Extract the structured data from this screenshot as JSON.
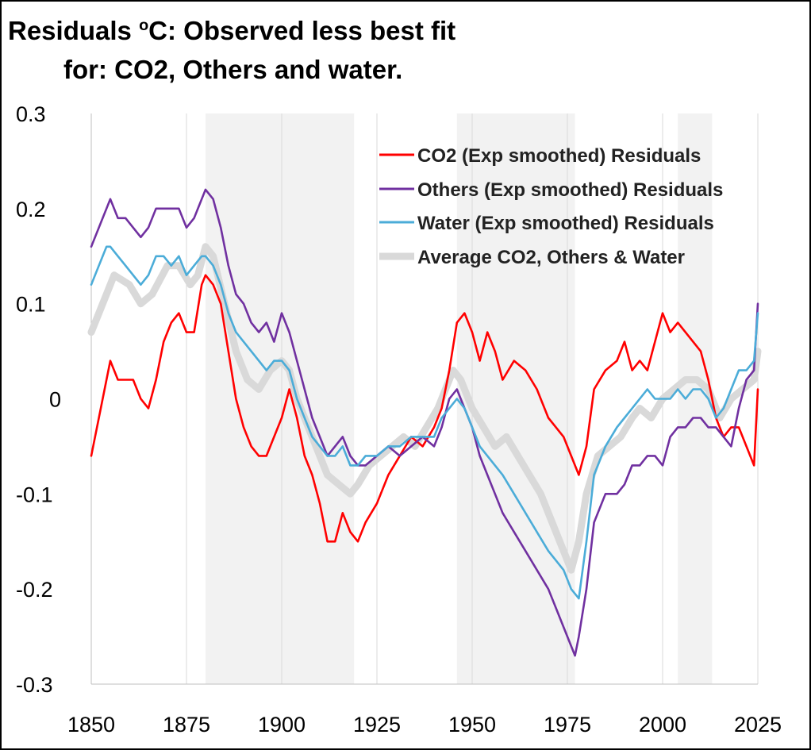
{
  "chart_data": {
    "type": "line",
    "title_line1_a": "Residuals ",
    "title_sup": "o",
    "title_line1_b": "C: Observed less best fit",
    "title_line2": "for: CO2, Others and water.",
    "xlim": [
      1850,
      2025
    ],
    "ylim": [
      -0.3,
      0.3
    ],
    "x_ticks": [
      1850,
      1875,
      1900,
      1925,
      1950,
      1975,
      2000,
      2025
    ],
    "x_tick_labels": [
      "1850",
      "1875",
      "1900",
      "1925",
      "1950",
      "1975",
      "2000",
      "2025"
    ],
    "y_ticks": [
      0.3,
      0.2,
      0.1,
      0,
      -0.1,
      -0.2,
      -0.3
    ],
    "y_tick_labels": [
      "0.3",
      "0.2",
      "0.1",
      "0",
      "-0.1",
      "-0.2",
      "-0.3"
    ],
    "grid": "vertical",
    "legend_position": "top-right",
    "shaded_periods": [
      [
        1880,
        1919
      ],
      [
        1946,
        1977
      ],
      [
        2004,
        2013
      ]
    ],
    "series": [
      {
        "name": "Average CO2, Others & Water",
        "color": "#d9d9d9",
        "x": [
          1850,
          1853,
          1856,
          1860,
          1863,
          1866,
          1870,
          1873,
          1876,
          1878,
          1880,
          1882,
          1885,
          1888,
          1891,
          1894,
          1897,
          1900,
          1902,
          1904,
          1906,
          1909,
          1912,
          1915,
          1918,
          1920,
          1923,
          1926,
          1929,
          1932,
          1935,
          1938,
          1941,
          1943,
          1945,
          1947,
          1950,
          1953,
          1956,
          1959,
          1962,
          1965,
          1968,
          1971,
          1974,
          1976,
          1978,
          1980,
          1983,
          1986,
          1989,
          1992,
          1994,
          1997,
          2000,
          2003,
          2006,
          2009,
          2012,
          2015,
          2018,
          2021,
          2024,
          2025
        ],
        "values": [
          0.07,
          0.1,
          0.13,
          0.12,
          0.1,
          0.11,
          0.14,
          0.14,
          0.12,
          0.13,
          0.16,
          0.15,
          0.1,
          0.05,
          0.02,
          0.01,
          0.03,
          0.04,
          0.03,
          0.0,
          -0.02,
          -0.05,
          -0.08,
          -0.09,
          -0.1,
          -0.09,
          -0.07,
          -0.06,
          -0.05,
          -0.04,
          -0.05,
          -0.03,
          -0.01,
          0.01,
          0.03,
          0.02,
          -0.01,
          -0.03,
          -0.05,
          -0.04,
          -0.06,
          -0.08,
          -0.1,
          -0.13,
          -0.16,
          -0.18,
          -0.15,
          -0.1,
          -0.06,
          -0.05,
          -0.04,
          -0.02,
          -0.01,
          -0.02,
          0.0,
          0.01,
          0.02,
          0.02,
          0.01,
          -0.02,
          0.0,
          0.01,
          0.02,
          0.05
        ]
      },
      {
        "name": "CO2 (Exp smoothed) Residuals",
        "color": "#ff0000",
        "x": [
          1850,
          1852,
          1854,
          1855,
          1857,
          1859,
          1861,
          1863,
          1865,
          1867,
          1869,
          1871,
          1873,
          1875,
          1877,
          1879,
          1880,
          1882,
          1884,
          1886,
          1888,
          1890,
          1892,
          1894,
          1896,
          1898,
          1900,
          1902,
          1904,
          1906,
          1908,
          1910,
          1912,
          1914,
          1916,
          1918,
          1920,
          1922,
          1925,
          1928,
          1931,
          1934,
          1937,
          1940,
          1942,
          1944,
          1946,
          1948,
          1950,
          1952,
          1954,
          1956,
          1958,
          1961,
          1964,
          1967,
          1970,
          1972,
          1974,
          1976,
          1978,
          1980,
          1982,
          1985,
          1988,
          1990,
          1992,
          1994,
          1996,
          1998,
          2000,
          2002,
          2004,
          2006,
          2008,
          2010,
          2012,
          2014,
          2016,
          2018,
          2020,
          2022,
          2024,
          2025
        ],
        "values": [
          -0.06,
          -0.02,
          0.02,
          0.04,
          0.02,
          0.02,
          0.02,
          0.0,
          -0.01,
          0.02,
          0.06,
          0.08,
          0.09,
          0.07,
          0.07,
          0.12,
          0.13,
          0.12,
          0.1,
          0.05,
          0.0,
          -0.03,
          -0.05,
          -0.06,
          -0.06,
          -0.04,
          -0.02,
          0.01,
          -0.02,
          -0.06,
          -0.08,
          -0.11,
          -0.15,
          -0.15,
          -0.12,
          -0.14,
          -0.15,
          -0.13,
          -0.11,
          -0.08,
          -0.06,
          -0.04,
          -0.05,
          -0.03,
          -0.01,
          0.03,
          0.08,
          0.09,
          0.07,
          0.04,
          0.07,
          0.05,
          0.02,
          0.04,
          0.03,
          0.01,
          -0.02,
          -0.03,
          -0.04,
          -0.06,
          -0.08,
          -0.05,
          0.01,
          0.03,
          0.04,
          0.06,
          0.03,
          0.04,
          0.03,
          0.06,
          0.09,
          0.07,
          0.08,
          0.07,
          0.06,
          0.05,
          0.02,
          -0.02,
          -0.04,
          -0.03,
          -0.03,
          -0.05,
          -0.07,
          0.01
        ]
      },
      {
        "name": "Others (Exp smoothed) Residuals",
        "color": "#7030a0",
        "x": [
          1850,
          1852,
          1854,
          1855,
          1857,
          1859,
          1861,
          1863,
          1865,
          1867,
          1869,
          1871,
          1873,
          1875,
          1877,
          1879,
          1880,
          1882,
          1884,
          1886,
          1888,
          1890,
          1892,
          1894,
          1896,
          1898,
          1900,
          1902,
          1904,
          1906,
          1908,
          1910,
          1912,
          1914,
          1916,
          1918,
          1920,
          1922,
          1925,
          1928,
          1931,
          1934,
          1937,
          1940,
          1942,
          1944,
          1946,
          1948,
          1950,
          1952,
          1954,
          1956,
          1958,
          1961,
          1964,
          1967,
          1970,
          1972,
          1974,
          1976,
          1977,
          1978,
          1980,
          1982,
          1985,
          1988,
          1990,
          1992,
          1994,
          1996,
          1998,
          2000,
          2002,
          2004,
          2006,
          2008,
          2010,
          2012,
          2014,
          2016,
          2018,
          2020,
          2022,
          2024,
          2025
        ],
        "values": [
          0.16,
          0.18,
          0.2,
          0.21,
          0.19,
          0.19,
          0.18,
          0.17,
          0.18,
          0.2,
          0.2,
          0.2,
          0.2,
          0.18,
          0.19,
          0.21,
          0.22,
          0.21,
          0.18,
          0.14,
          0.11,
          0.1,
          0.08,
          0.07,
          0.08,
          0.06,
          0.09,
          0.07,
          0.04,
          0.01,
          -0.02,
          -0.04,
          -0.06,
          -0.05,
          -0.04,
          -0.06,
          -0.07,
          -0.07,
          -0.06,
          -0.05,
          -0.06,
          -0.05,
          -0.04,
          -0.05,
          -0.03,
          0.0,
          0.01,
          -0.01,
          -0.03,
          -0.06,
          -0.08,
          -0.1,
          -0.12,
          -0.14,
          -0.16,
          -0.18,
          -0.2,
          -0.22,
          -0.24,
          -0.26,
          -0.27,
          -0.25,
          -0.2,
          -0.13,
          -0.1,
          -0.1,
          -0.09,
          -0.07,
          -0.07,
          -0.06,
          -0.06,
          -0.07,
          -0.04,
          -0.03,
          -0.03,
          -0.02,
          -0.02,
          -0.03,
          -0.03,
          -0.04,
          -0.05,
          -0.01,
          0.02,
          0.03,
          0.1
        ]
      },
      {
        "name": "Water (Exp smoothed) Residuals",
        "color": "#4bacd8",
        "x": [
          1850,
          1852,
          1854,
          1855,
          1857,
          1859,
          1861,
          1863,
          1865,
          1867,
          1869,
          1871,
          1873,
          1875,
          1877,
          1879,
          1880,
          1882,
          1884,
          1886,
          1888,
          1890,
          1892,
          1894,
          1896,
          1898,
          1900,
          1902,
          1904,
          1906,
          1908,
          1910,
          1912,
          1914,
          1916,
          1918,
          1920,
          1922,
          1925,
          1928,
          1931,
          1934,
          1937,
          1940,
          1942,
          1944,
          1946,
          1948,
          1950,
          1952,
          1954,
          1956,
          1958,
          1961,
          1964,
          1967,
          1970,
          1972,
          1974,
          1976,
          1978,
          1980,
          1982,
          1985,
          1988,
          1990,
          1992,
          1994,
          1996,
          1998,
          2000,
          2002,
          2004,
          2006,
          2008,
          2010,
          2012,
          2014,
          2016,
          2018,
          2020,
          2022,
          2024,
          2025
        ],
        "values": [
          0.12,
          0.14,
          0.16,
          0.16,
          0.15,
          0.14,
          0.13,
          0.12,
          0.13,
          0.15,
          0.15,
          0.14,
          0.15,
          0.13,
          0.14,
          0.15,
          0.15,
          0.14,
          0.12,
          0.09,
          0.07,
          0.06,
          0.05,
          0.04,
          0.03,
          0.04,
          0.04,
          0.03,
          0.0,
          -0.02,
          -0.04,
          -0.05,
          -0.06,
          -0.06,
          -0.05,
          -0.07,
          -0.07,
          -0.06,
          -0.06,
          -0.05,
          -0.05,
          -0.04,
          -0.04,
          -0.04,
          -0.02,
          -0.01,
          0.0,
          -0.01,
          -0.03,
          -0.05,
          -0.06,
          -0.07,
          -0.08,
          -0.1,
          -0.12,
          -0.14,
          -0.16,
          -0.17,
          -0.18,
          -0.2,
          -0.21,
          -0.15,
          -0.08,
          -0.05,
          -0.03,
          -0.02,
          -0.01,
          0.0,
          0.01,
          0.0,
          0.0,
          0.0,
          0.01,
          0.0,
          0.01,
          0.01,
          0.0,
          -0.02,
          -0.01,
          0.01,
          0.03,
          0.03,
          0.04,
          0.09
        ]
      }
    ],
    "legend": [
      {
        "label": "CO2 (Exp smoothed) Residuals",
        "color": "#ff0000"
      },
      {
        "label": "Others (Exp smoothed) Residuals",
        "color": "#7030a0"
      },
      {
        "label": "Water (Exp smoothed) Residuals",
        "color": "#4bacd8"
      },
      {
        "label": "Average CO2, Others & Water",
        "color": "#d9d9d9"
      }
    ]
  }
}
